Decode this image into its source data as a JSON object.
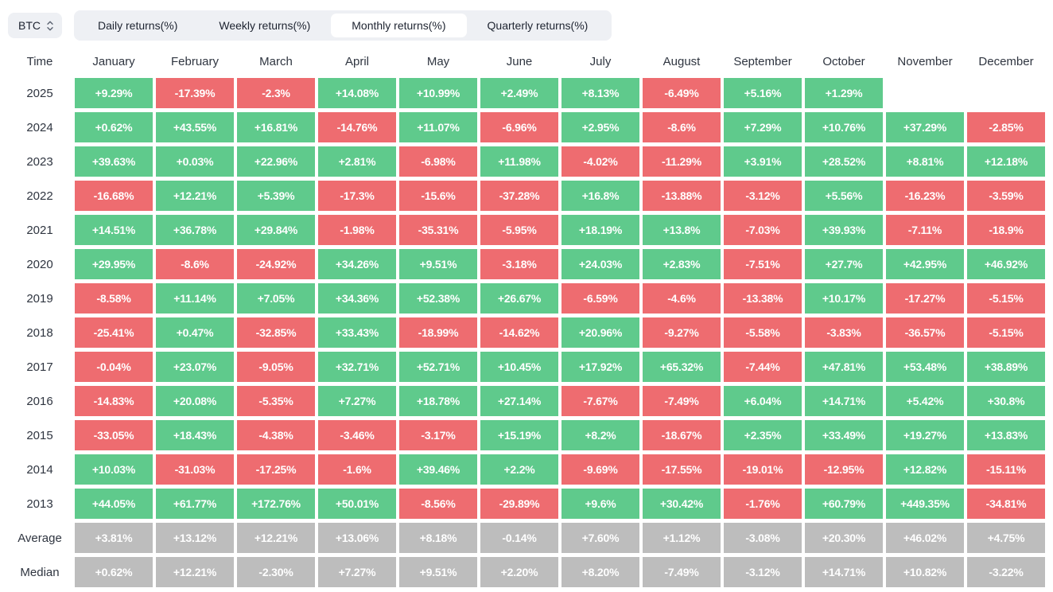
{
  "controls": {
    "symbol": "BTC",
    "tabs": [
      {
        "label": "Daily returns(%)",
        "active": false
      },
      {
        "label": "Weekly returns(%)",
        "active": false
      },
      {
        "label": "Monthly returns(%)",
        "active": true
      },
      {
        "label": "Quarterly returns(%)",
        "active": false
      }
    ]
  },
  "colors": {
    "positive": "#5fca8c",
    "negative": "#ee6c70",
    "summary": "#bdbdbd"
  },
  "table": {
    "columns": [
      "Time",
      "January",
      "February",
      "March",
      "April",
      "May",
      "June",
      "July",
      "August",
      "September",
      "October",
      "November",
      "December"
    ],
    "rows": [
      {
        "label": "2025",
        "type": "year",
        "values": [
          "+9.29%",
          "-17.39%",
          "-2.3%",
          "+14.08%",
          "+10.99%",
          "+2.49%",
          "+8.13%",
          "-6.49%",
          "+5.16%",
          "+1.29%",
          "",
          ""
        ]
      },
      {
        "label": "2024",
        "type": "year",
        "values": [
          "+0.62%",
          "+43.55%",
          "+16.81%",
          "-14.76%",
          "+11.07%",
          "-6.96%",
          "+2.95%",
          "-8.6%",
          "+7.29%",
          "+10.76%",
          "+37.29%",
          "-2.85%"
        ]
      },
      {
        "label": "2023",
        "type": "year",
        "values": [
          "+39.63%",
          "+0.03%",
          "+22.96%",
          "+2.81%",
          "-6.98%",
          "+11.98%",
          "-4.02%",
          "-11.29%",
          "+3.91%",
          "+28.52%",
          "+8.81%",
          "+12.18%"
        ]
      },
      {
        "label": "2022",
        "type": "year",
        "values": [
          "-16.68%",
          "+12.21%",
          "+5.39%",
          "-17.3%",
          "-15.6%",
          "-37.28%",
          "+16.8%",
          "-13.88%",
          "-3.12%",
          "+5.56%",
          "-16.23%",
          "-3.59%"
        ]
      },
      {
        "label": "2021",
        "type": "year",
        "values": [
          "+14.51%",
          "+36.78%",
          "+29.84%",
          "-1.98%",
          "-35.31%",
          "-5.95%",
          "+18.19%",
          "+13.8%",
          "-7.03%",
          "+39.93%",
          "-7.11%",
          "-18.9%"
        ]
      },
      {
        "label": "2020",
        "type": "year",
        "values": [
          "+29.95%",
          "-8.6%",
          "-24.92%",
          "+34.26%",
          "+9.51%",
          "-3.18%",
          "+24.03%",
          "+2.83%",
          "-7.51%",
          "+27.7%",
          "+42.95%",
          "+46.92%"
        ]
      },
      {
        "label": "2019",
        "type": "year",
        "values": [
          "-8.58%",
          "+11.14%",
          "+7.05%",
          "+34.36%",
          "+52.38%",
          "+26.67%",
          "-6.59%",
          "-4.6%",
          "-13.38%",
          "+10.17%",
          "-17.27%",
          "-5.15%"
        ]
      },
      {
        "label": "2018",
        "type": "year",
        "values": [
          "-25.41%",
          "+0.47%",
          "-32.85%",
          "+33.43%",
          "-18.99%",
          "-14.62%",
          "+20.96%",
          "-9.27%",
          "-5.58%",
          "-3.83%",
          "-36.57%",
          "-5.15%"
        ]
      },
      {
        "label": "2017",
        "type": "year",
        "values": [
          "-0.04%",
          "+23.07%",
          "-9.05%",
          "+32.71%",
          "+52.71%",
          "+10.45%",
          "+17.92%",
          "+65.32%",
          "-7.44%",
          "+47.81%",
          "+53.48%",
          "+38.89%"
        ]
      },
      {
        "label": "2016",
        "type": "year",
        "values": [
          "-14.83%",
          "+20.08%",
          "-5.35%",
          "+7.27%",
          "+18.78%",
          "+27.14%",
          "-7.67%",
          "-7.49%",
          "+6.04%",
          "+14.71%",
          "+5.42%",
          "+30.8%"
        ]
      },
      {
        "label": "2015",
        "type": "year",
        "values": [
          "-33.05%",
          "+18.43%",
          "-4.38%",
          "-3.46%",
          "-3.17%",
          "+15.19%",
          "+8.2%",
          "-18.67%",
          "+2.35%",
          "+33.49%",
          "+19.27%",
          "+13.83%"
        ]
      },
      {
        "label": "2014",
        "type": "year",
        "values": [
          "+10.03%",
          "-31.03%",
          "-17.25%",
          "-1.6%",
          "+39.46%",
          "+2.2%",
          "-9.69%",
          "-17.55%",
          "-19.01%",
          "-12.95%",
          "+12.82%",
          "-15.11%"
        ]
      },
      {
        "label": "2013",
        "type": "year",
        "values": [
          "+44.05%",
          "+61.77%",
          "+172.76%",
          "+50.01%",
          "-8.56%",
          "-29.89%",
          "+9.6%",
          "+30.42%",
          "-1.76%",
          "+60.79%",
          "+449.35%",
          "-34.81%"
        ]
      },
      {
        "label": "Average",
        "type": "summary",
        "values": [
          "+3.81%",
          "+13.12%",
          "+12.21%",
          "+13.06%",
          "+8.18%",
          "-0.14%",
          "+7.60%",
          "+1.12%",
          "-3.08%",
          "+20.30%",
          "+46.02%",
          "+4.75%"
        ]
      },
      {
        "label": "Median",
        "type": "summary",
        "values": [
          "+0.62%",
          "+12.21%",
          "-2.30%",
          "+7.27%",
          "+9.51%",
          "+2.20%",
          "+8.20%",
          "-7.49%",
          "-3.12%",
          "+14.71%",
          "+10.82%",
          "-3.22%"
        ]
      }
    ]
  },
  "chart_data": {
    "type": "heatmap",
    "title": "BTC Monthly returns(%)",
    "x_categories": [
      "January",
      "February",
      "March",
      "April",
      "May",
      "June",
      "July",
      "August",
      "September",
      "October",
      "November",
      "December"
    ],
    "y_categories": [
      "2025",
      "2024",
      "2023",
      "2022",
      "2021",
      "2020",
      "2019",
      "2018",
      "2017",
      "2016",
      "2015",
      "2014",
      "2013",
      "Average",
      "Median"
    ],
    "values": [
      [
        9.29,
        -17.39,
        -2.3,
        14.08,
        10.99,
        2.49,
        8.13,
        -6.49,
        5.16,
        1.29,
        null,
        null
      ],
      [
        0.62,
        43.55,
        16.81,
        -14.76,
        11.07,
        -6.96,
        2.95,
        -8.6,
        7.29,
        10.76,
        37.29,
        -2.85
      ],
      [
        39.63,
        0.03,
        22.96,
        2.81,
        -6.98,
        11.98,
        -4.02,
        -11.29,
        3.91,
        28.52,
        8.81,
        12.18
      ],
      [
        -16.68,
        12.21,
        5.39,
        -17.3,
        -15.6,
        -37.28,
        16.8,
        -13.88,
        -3.12,
        5.56,
        -16.23,
        -3.59
      ],
      [
        14.51,
        36.78,
        29.84,
        -1.98,
        -35.31,
        -5.95,
        18.19,
        13.8,
        -7.03,
        39.93,
        -7.11,
        -18.9
      ],
      [
        29.95,
        -8.6,
        -24.92,
        34.26,
        9.51,
        -3.18,
        24.03,
        2.83,
        -7.51,
        27.7,
        42.95,
        46.92
      ],
      [
        -8.58,
        11.14,
        7.05,
        34.36,
        52.38,
        26.67,
        -6.59,
        -4.6,
        -13.38,
        10.17,
        -17.27,
        -5.15
      ],
      [
        -25.41,
        0.47,
        -32.85,
        33.43,
        -18.99,
        -14.62,
        20.96,
        -9.27,
        -5.58,
        -3.83,
        -36.57,
        -5.15
      ],
      [
        -0.04,
        23.07,
        -9.05,
        32.71,
        52.71,
        10.45,
        17.92,
        65.32,
        -7.44,
        47.81,
        53.48,
        38.89
      ],
      [
        -14.83,
        20.08,
        -5.35,
        7.27,
        18.78,
        27.14,
        -7.67,
        -7.49,
        6.04,
        14.71,
        5.42,
        30.8
      ],
      [
        -33.05,
        18.43,
        -4.38,
        -3.46,
        -3.17,
        15.19,
        8.2,
        -18.67,
        2.35,
        33.49,
        19.27,
        13.83
      ],
      [
        10.03,
        -31.03,
        -17.25,
        -1.6,
        39.46,
        2.2,
        -9.69,
        -17.55,
        -19.01,
        -12.95,
        12.82,
        -15.11
      ],
      [
        44.05,
        61.77,
        172.76,
        50.01,
        -8.56,
        -29.89,
        9.6,
        30.42,
        -1.76,
        60.79,
        449.35,
        -34.81
      ],
      [
        3.81,
        13.12,
        12.21,
        13.06,
        8.18,
        -0.14,
        7.6,
        1.12,
        -3.08,
        20.3,
        46.02,
        4.75
      ],
      [
        0.62,
        12.21,
        -2.3,
        7.27,
        9.51,
        2.2,
        8.2,
        -7.49,
        -3.12,
        14.71,
        10.82,
        -3.22
      ]
    ],
    "legend_position": "none",
    "grid": false
  }
}
